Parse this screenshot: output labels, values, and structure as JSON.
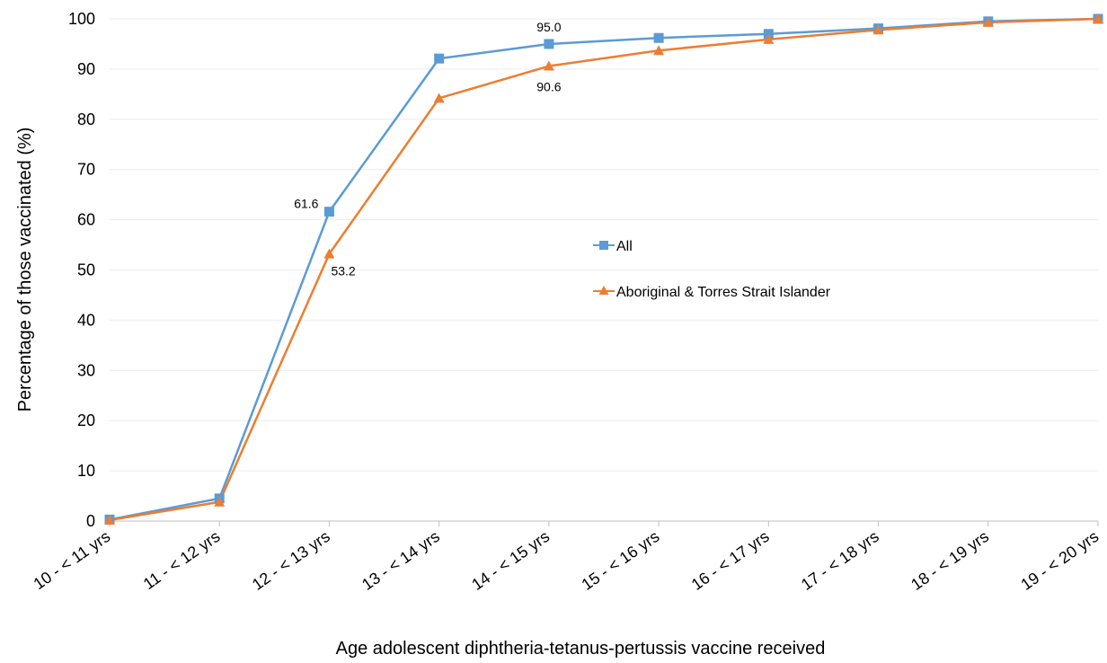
{
  "chart_data": {
    "type": "line",
    "title": "",
    "xlabel": "Age adolescent diphtheria-tetanus-pertussis vaccine received",
    "ylabel": "Percentage of those vaccinated (%)",
    "ylim": [
      0,
      100
    ],
    "yticks": [
      0,
      10,
      20,
      30,
      40,
      50,
      60,
      70,
      80,
      90,
      100
    ],
    "categories": [
      "10 - < 11 yrs",
      "11 - < 12 yrs",
      "12 - < 13 yrs",
      "13 - < 14 yrs",
      "14 - < 15 yrs",
      "15 - < 16 yrs",
      "16 - < 17 yrs",
      "17 - < 18 yrs",
      "18 - < 19 yrs",
      "19 - < 20 yrs"
    ],
    "grid": true,
    "legend_position": "center-right",
    "series": [
      {
        "name": "All",
        "color": "#5B9BD5",
        "marker": "square",
        "values": [
          0.3,
          4.5,
          61.6,
          92.1,
          95.0,
          96.2,
          97.0,
          98.1,
          99.5,
          100
        ],
        "data_labels": [
          {
            "index": 2,
            "text": "61.6",
            "placement": "left"
          },
          {
            "index": 4,
            "text": "95.0",
            "placement": "above"
          }
        ]
      },
      {
        "name": "Aboriginal & Torres Strait Islander",
        "color": "#ED7D31",
        "marker": "triangle",
        "values": [
          0.2,
          3.8,
          53.2,
          84.2,
          90.6,
          93.7,
          95.9,
          97.8,
          99.3,
          100
        ],
        "data_labels": [
          {
            "index": 2,
            "text": "53.2",
            "placement": "below-right"
          },
          {
            "index": 4,
            "text": "90.6",
            "placement": "below"
          }
        ]
      }
    ]
  }
}
